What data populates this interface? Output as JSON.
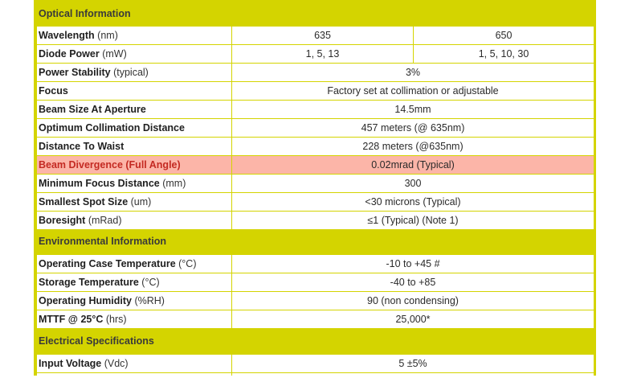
{
  "sections": {
    "optical": "Optical Information",
    "environmental": "Environmental Information",
    "electrical": "Electrical Specifications"
  },
  "optical_rows": [
    {
      "label": "Wavelength",
      "unit": "(nm)",
      "values": [
        "635",
        "650"
      ]
    },
    {
      "label": "Diode Power",
      "unit": "(mW)",
      "values": [
        "1, 5, 13",
        "1, 5, 10, 30"
      ]
    },
    {
      "label": "Power Stability",
      "unit": "(typical)",
      "value": "3%"
    },
    {
      "label": "Focus",
      "unit": "",
      "value": "Factory set at collimation or adjustable"
    },
    {
      "label": "Beam Size At Aperture",
      "unit": "",
      "value": "14.5mm"
    },
    {
      "label": "Optimum Collimation Distance",
      "unit": "",
      "value": "457 meters (@ 635nm)"
    },
    {
      "label": "Distance To Waist",
      "unit": "",
      "value": "228 meters (@635nm)"
    },
    {
      "label": "Beam Divergence (Full Angle)",
      "unit": "",
      "value": "0.02mrad (Typical)",
      "highlight": true
    },
    {
      "label": "Minimum Focus Distance",
      "unit": "(mm)",
      "value": "300"
    },
    {
      "label": "Smallest Spot Size",
      "unit": "(um)",
      "value": "<30 microns (Typical)"
    },
    {
      "label": "Boresight",
      "unit": "(mRad)",
      "value": "≤1 (Typical) (Note 1)"
    }
  ],
  "environmental_rows": [
    {
      "label": "Operating Case Temperature",
      "unit": "(°C)",
      "value": "-10 to +45 #"
    },
    {
      "label": "Storage Temperature",
      "unit": "(°C)",
      "value": "-40 to +85"
    },
    {
      "label": "Operating Humidity",
      "unit": "(%RH)",
      "value": "90 (non condensing)"
    },
    {
      "label": "MTTF @ 25°C",
      "unit": "(hrs)",
      "value": "25,000*"
    }
  ],
  "electrical_rows": [
    {
      "label": "Input Voltage",
      "unit": "(Vdc)",
      "value": "5 ±5%"
    }
  ],
  "colors": {
    "section_bg": "#d4d400",
    "highlight_bg": "#fcb5a8",
    "highlight_text": "#c42a22"
  }
}
